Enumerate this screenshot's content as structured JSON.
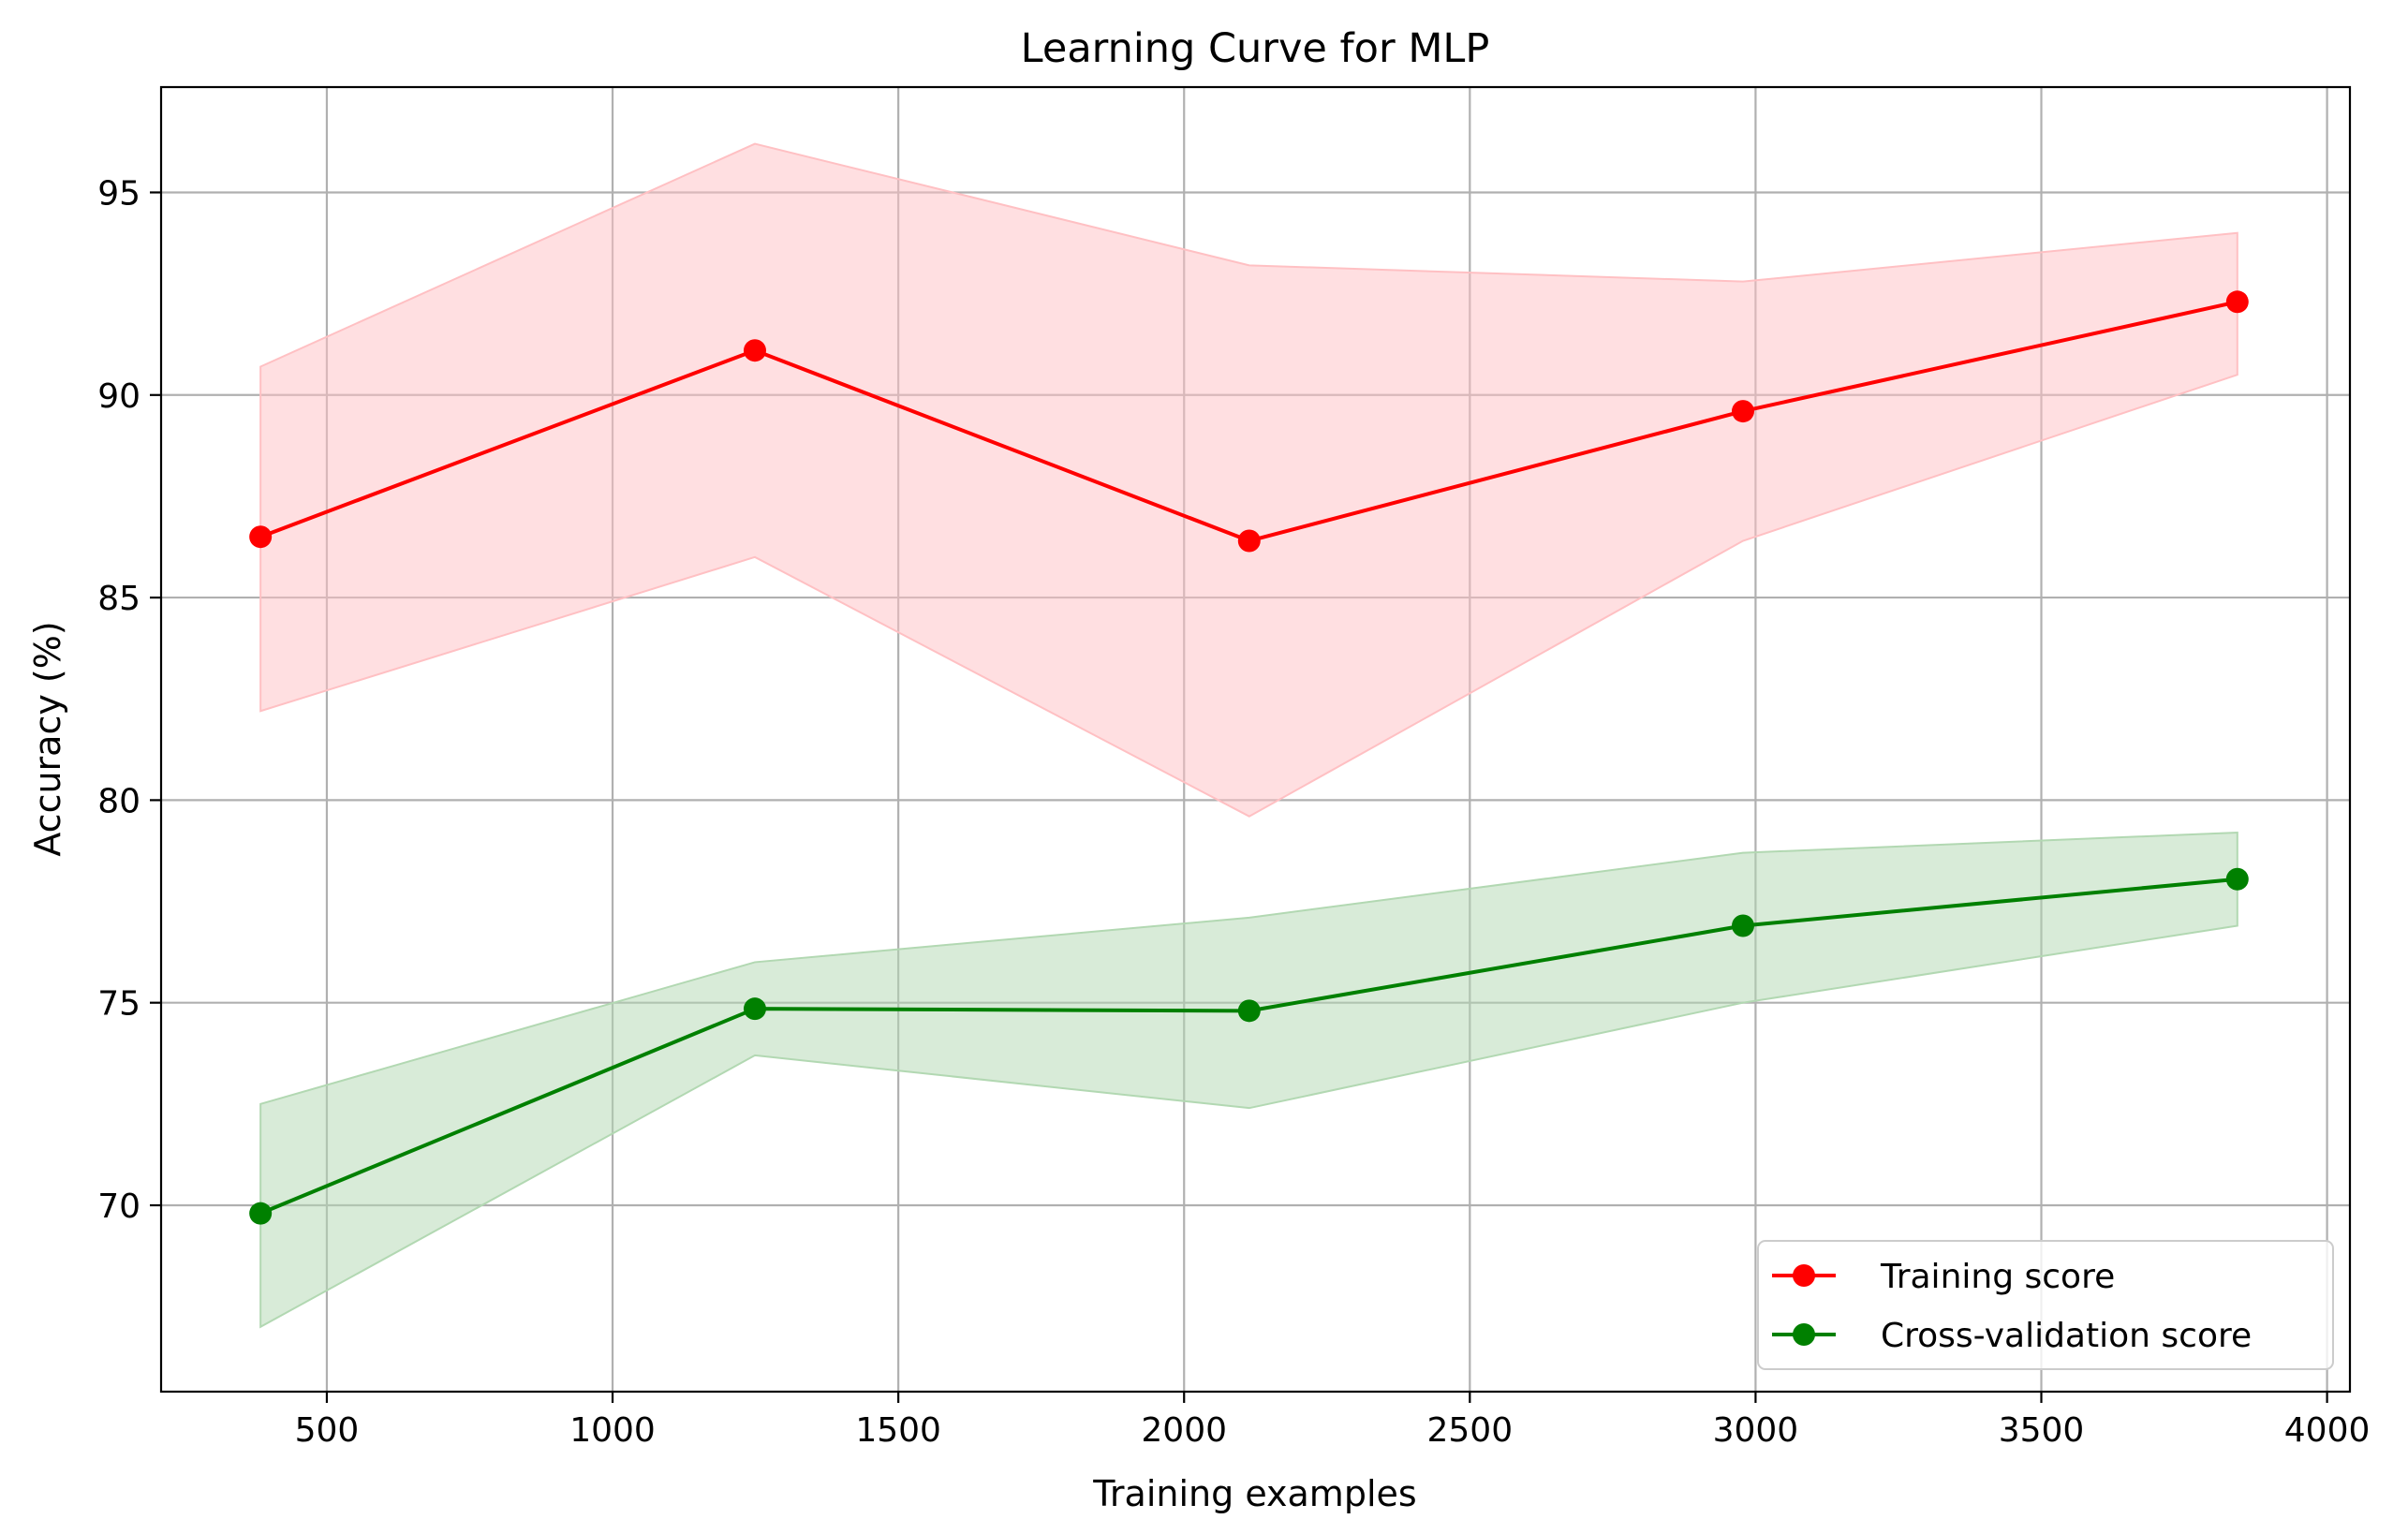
{
  "chart_data": {
    "type": "line",
    "title": "Learning Curve for MLP",
    "xlabel": "Training examples",
    "ylabel": "Accuracy (%)",
    "xlim": [
      210,
      4040
    ],
    "ylim": [
      65.4,
      97.6
    ],
    "xticks": [
      500,
      1000,
      1500,
      2000,
      2500,
      3000,
      3500,
      4000
    ],
    "yticks": [
      70,
      75,
      80,
      85,
      90,
      95
    ],
    "grid": true,
    "legend_position": "lower-right",
    "x": [
      384,
      1249,
      2114,
      2978,
      3843
    ],
    "series": [
      {
        "name": "Training score",
        "color": "#ff0000",
        "band_color": "#ffc0c3",
        "values": [
          86.5,
          91.1,
          86.4,
          89.6,
          92.3
        ],
        "band_upper": [
          90.7,
          96.2,
          93.2,
          92.8,
          94.0
        ],
        "band_lower": [
          82.2,
          86.0,
          79.6,
          86.4,
          90.5
        ]
      },
      {
        "name": "Cross-validation score",
        "color": "#008000",
        "band_color": "#b2d8b2",
        "values": [
          69.8,
          74.85,
          74.8,
          76.9,
          78.05
        ],
        "band_upper": [
          72.5,
          76.0,
          77.1,
          78.7,
          79.2
        ],
        "band_lower": [
          67.0,
          73.7,
          72.4,
          75.0,
          76.9
        ]
      }
    ]
  }
}
